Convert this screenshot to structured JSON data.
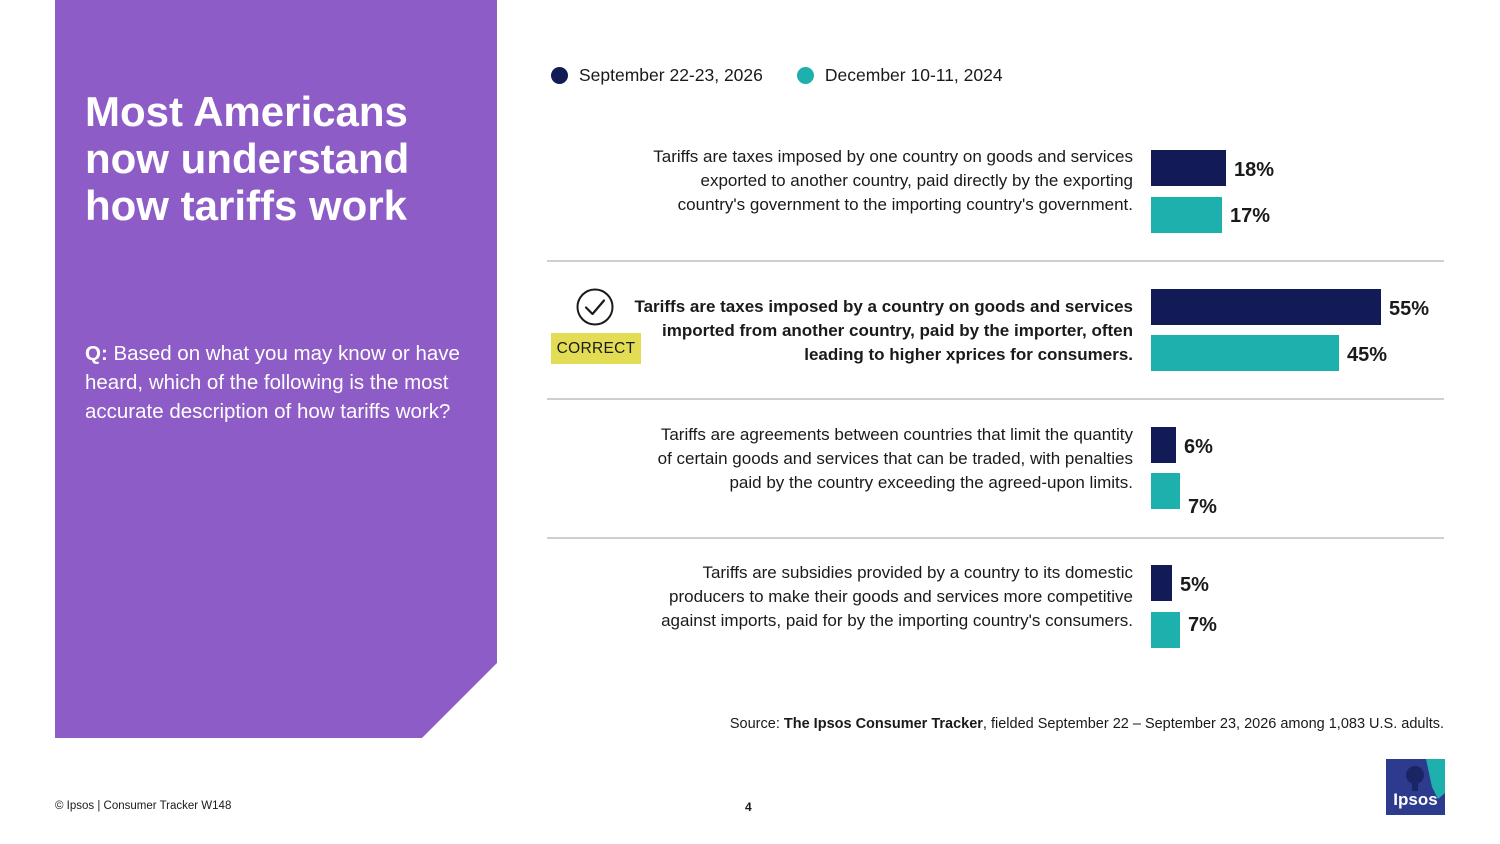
{
  "panel": {
    "title": "Most Americans now understand how tariffs work",
    "question_prefix": "Q:",
    "question": " Based on what you may know or have heard, which of the following is the most accurate description of how tariffs work?"
  },
  "colors": {
    "panel_bg": "#8e5cc6",
    "series_2026": "#131b57",
    "series_2024": "#1eb0ad",
    "correct_badge": "#e3dd55",
    "logo_bg": "#2d3b8f",
    "logo_accent": "#1eb0ad"
  },
  "legend": {
    "items": [
      {
        "label": "September 22-23, 2026",
        "color": "#131b57"
      },
      {
        "label": "December 10-11, 2024",
        "color": "#1eb0ad"
      }
    ]
  },
  "chart_data": {
    "type": "bar",
    "orientation": "horizontal",
    "categories": [
      "Tariffs are taxes imposed by one country on goods and services exported to another country, paid directly by the exporting country's government to the importing country's government.",
      "Tariffs are taxes imposed by a country on goods and services imported from another country, paid by the importer, often leading to higher xprices for consumers.",
      "Tariffs are agreements between countries that limit the quantity of certain goods and services that can be traded, with penalties paid by the country exceeding the agreed-upon limits.",
      "Tariffs are subsidies provided by a country to its domestic producers to make their goods and services more competitive against imports, paid for by the importing country's consumers."
    ],
    "series": [
      {
        "name": "September 22-23, 2026",
        "values": [
          18,
          55,
          6,
          5
        ],
        "labels": [
          "18%",
          "55%",
          "6%",
          "5%"
        ]
      },
      {
        "name": "December 10-11, 2024",
        "values": [
          17,
          45,
          7,
          7
        ],
        "labels": [
          "17%",
          "45%",
          "7%",
          "7%"
        ]
      }
    ],
    "correct_category": 1,
    "value_unit": "%"
  },
  "correct_badge_label": "CORRECT",
  "source": {
    "prefix": "Source: ",
    "name": "The Ipsos Consumer Tracker",
    "rest": ", fielded September 22 – September 23, 2026 among 1,083 U.S. adults."
  },
  "footer": {
    "copyright": "© Ipsos | Consumer Tracker W148",
    "page_number": "4"
  },
  "logo": {
    "text": "Ipsos"
  }
}
